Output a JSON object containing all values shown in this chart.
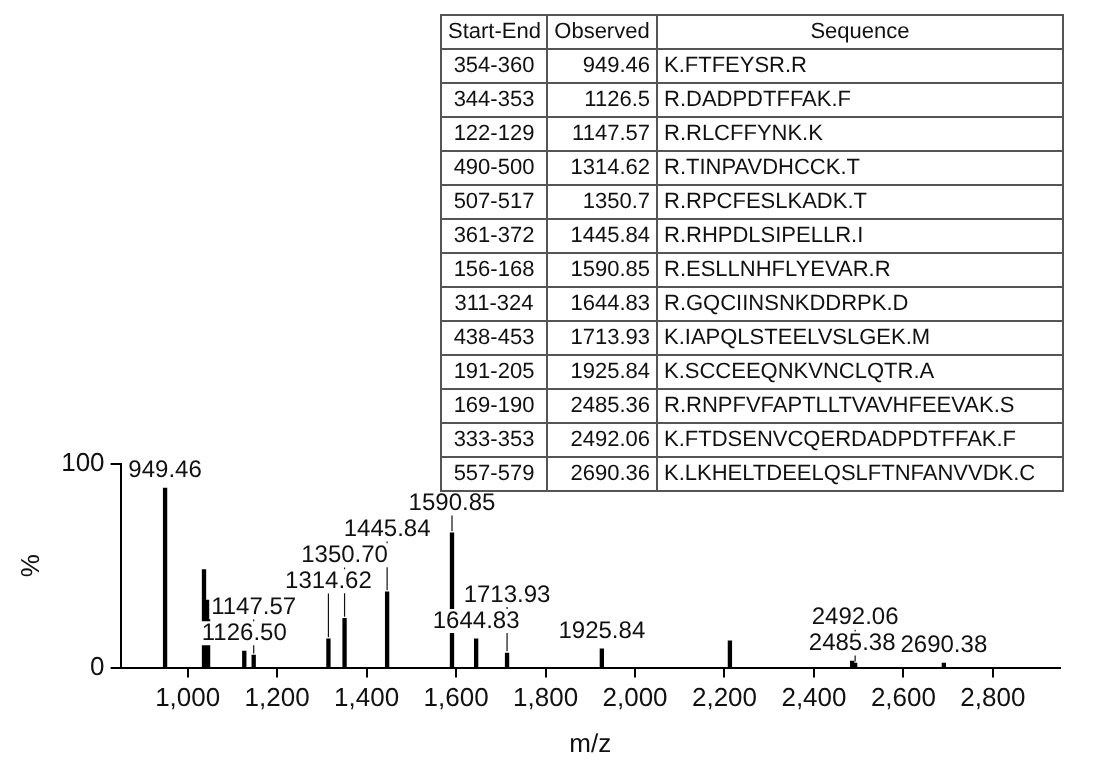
{
  "chart_data": {
    "type": "bar",
    "xlabel": "m/z",
    "ylabel": "%",
    "x": [
      949.46,
      1036.52,
      1045.59,
      1126.5,
      1147.57,
      1314.62,
      1350.7,
      1445.84,
      1590.85,
      1644.83,
      1713.93,
      1925.84,
      2212.11,
      2485.38,
      2492.06,
      2690.38
    ],
    "values": [
      88,
      48,
      33,
      8,
      6,
      14,
      24,
      37,
      66,
      14,
      7,
      9,
      13,
      3,
      2,
      2
    ],
    "color": "#000000",
    "xlim": [
      850,
      2950
    ],
    "xticks": [
      {
        "value": 1000,
        "label": "1,000"
      },
      {
        "value": 1200,
        "label": "1,200"
      },
      {
        "value": 1400,
        "label": "1,400"
      },
      {
        "value": 1600,
        "label": "1,600"
      },
      {
        "value": 1800,
        "label": "1,800"
      },
      {
        "value": 2000,
        "label": "2,000"
      },
      {
        "value": 2200,
        "label": "2,200"
      },
      {
        "value": 2400,
        "label": "2,400"
      },
      {
        "value": 2600,
        "label": "2,600"
      },
      {
        "value": 2800,
        "label": "2,800"
      }
    ],
    "ylim": [
      0,
      100
    ],
    "yticks": [
      0,
      100
    ],
    "grid": false,
    "legend": false,
    "annotations": [
      "Start-End",
      "Observed",
      "Sequence",
      "354-360",
      "949.46",
      "K.FTFEYSR.R",
      "344-353",
      "1126.5",
      "R.DADPDTFFAK.F",
      "122-129",
      "1147.57",
      "R.RLCFFYNK.K",
      "490-500",
      "1314.62",
      "R.TINPAVDHCCK.T",
      "507-517",
      "1350.7",
      "R.RPCFESLKADK.T",
      "361-372",
      "1445.84",
      "R.RHPDLSIPELLR.I",
      "156-168",
      "1590.85",
      "R.ESLLNHFLYEVAR.R",
      "311-324",
      "1644.83",
      "R.GQCIINSNKDDRPK.D",
      "438-453",
      "1713.93",
      "K.IAPQLSTEELVSLGEK.M",
      "191-205",
      "1925.84",
      "K.SCCEEQNKVNCLQTR.A",
      "169-190",
      "2485.36",
      "R.RNPFVFAPTLLTVAVHFEEVAK.S",
      "333-353",
      "2492.06",
      "K.FTDSENVCQERDADPDTFFAK.F",
      "557-579",
      "2690.36",
      "K.LKHELTDEELQSLFTNFANVVDK.C",
      {
        "text": "949.46",
        "x": 949.46,
        "y": 88
      },
      {
        "text": "1126.50",
        "x": 1126.5,
        "y": 8
      },
      {
        "text": "1147.57",
        "x": 1147.57,
        "y": 6
      },
      {
        "text": "1314.62",
        "x": 1314.62,
        "y": 14
      },
      {
        "text": "1350.70",
        "x": 1350.7,
        "y": 24
      },
      {
        "text": "1445.84",
        "x": 1445.84,
        "y": 37
      },
      {
        "text": "1590.85",
        "x": 1590.85,
        "y": 66
      },
      {
        "text": "1644.83",
        "x": 1644.83,
        "y": 14
      },
      {
        "text": "1713.93",
        "x": 1713.93,
        "y": 7
      },
      {
        "text": "1925.84",
        "x": 1925.84,
        "y": 9
      },
      {
        "text": "2485.38",
        "x": 2485.38,
        "y": 3
      },
      {
        "text": "2492.06",
        "x": 2492.06,
        "y": 2
      },
      {
        "text": "2690.38",
        "x": 2690.38,
        "y": 2
      }
    ]
  }
}
